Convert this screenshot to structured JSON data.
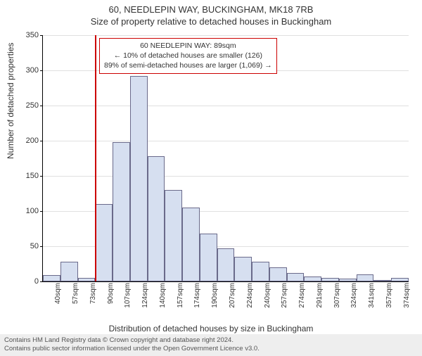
{
  "title_main": "60, NEEDLEPIN WAY, BUCKINGHAM, MK18 7RB",
  "title_sub": "Size of property relative to detached houses in Buckingham",
  "ylabel": "Number of detached properties",
  "xlabel": "Distribution of detached houses by size in Buckingham",
  "footer_line1": "Contains HM Land Registry data © Crown copyright and database right 2024.",
  "footer_line2": "Contains public sector information licensed under the Open Government Licence v3.0.",
  "chart": {
    "type": "histogram",
    "ylim": [
      0,
      350
    ],
    "ytick_step": 50,
    "bar_fill": "#d6dff0",
    "bar_stroke": "#6a6a8a",
    "grid_color": "#e0e0e0",
    "background_color": "#ffffff",
    "marker_color": "#cc0000",
    "marker_category_index": 3,
    "categories": [
      "40sqm",
      "57sqm",
      "73sqm",
      "90sqm",
      "107sqm",
      "124sqm",
      "140sqm",
      "157sqm",
      "174sqm",
      "190sqm",
      "207sqm",
      "224sqm",
      "240sqm",
      "257sqm",
      "274sqm",
      "291sqm",
      "307sqm",
      "324sqm",
      "341sqm",
      "357sqm",
      "374sqm"
    ],
    "values": [
      9,
      28,
      5,
      110,
      198,
      292,
      178,
      130,
      105,
      68,
      47,
      35,
      28,
      20,
      12,
      7,
      5,
      4,
      10,
      2,
      5
    ]
  },
  "info_box": {
    "line1": "60 NEEDLEPIN WAY: 89sqm",
    "line2": "← 10% of detached houses are smaller (126)",
    "line3": "89% of semi-detached houses are larger (1,069) →"
  }
}
